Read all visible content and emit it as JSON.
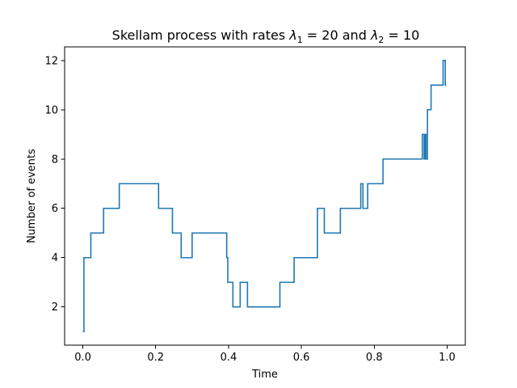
{
  "chart_data": {
    "type": "line",
    "step": true,
    "title": {
      "prefix": "Skellam process with rates ",
      "lambda1_symbol": "λ",
      "lambda1_sub": "1",
      "lambda1_value": " = 20",
      "conjunction": " and ",
      "lambda2_symbol": "λ",
      "lambda2_sub": "2",
      "lambda2_value": " = 10"
    },
    "xlabel": "Time",
    "ylabel": "Number of events",
    "xlim": [
      -0.05,
      1.05
    ],
    "ylim": [
      0.45,
      12.55
    ],
    "xticks": [
      0.0,
      0.2,
      0.4,
      0.6,
      0.8,
      1.0
    ],
    "xtick_labels": [
      "0.0",
      "0.2",
      "0.4",
      "0.6",
      "0.8",
      "1.0"
    ],
    "yticks": [
      2,
      4,
      6,
      8,
      10,
      12
    ],
    "ytick_labels": [
      "2",
      "4",
      "6",
      "8",
      "10",
      "12"
    ],
    "grid": false,
    "series": [
      {
        "color": "#1f77b4",
        "x": [
          0.0,
          0.003,
          0.022,
          0.057,
          0.1,
          0.208,
          0.246,
          0.27,
          0.3,
          0.395,
          0.398,
          0.412,
          0.432,
          0.437,
          0.452,
          0.468,
          0.541,
          0.58,
          0.644,
          0.663,
          0.707,
          0.763,
          0.769,
          0.782,
          0.824,
          0.932,
          0.937,
          0.94,
          0.942,
          0.946,
          0.956,
          0.989,
          0.995,
          0.998
        ],
        "y": [
          1,
          4,
          5,
          6,
          7,
          6,
          5,
          4,
          5,
          4,
          3,
          2,
          3,
          3,
          2,
          2,
          3,
          4,
          6,
          5,
          6,
          7,
          6,
          7,
          8,
          9,
          8,
          9,
          8,
          10,
          11,
          12,
          11,
          11
        ]
      }
    ]
  }
}
